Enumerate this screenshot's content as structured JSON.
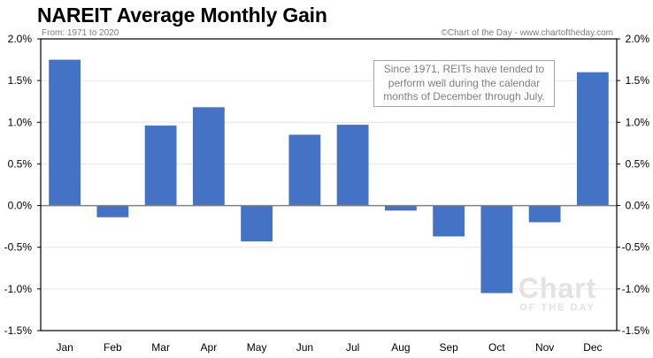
{
  "header": {
    "title": "NAREIT Average Monthly Gain",
    "subtitle": "From: 1971 to 2020",
    "credit": "©Chart of the Day - www.chartoftheday.com"
  },
  "annotation": {
    "lines": [
      "Since 1971, REITs have tended to",
      "perform well during the calendar",
      "months of December through July."
    ]
  },
  "watermark": {
    "big": "Chart",
    "small": "OF THE DAY"
  },
  "colors": {
    "bar": "#4472c4",
    "zero_line": "#808080",
    "gridline": "#e6e6e6",
    "axis": "#000000"
  },
  "chart_data": {
    "type": "bar",
    "title": "NAREIT Average Monthly Gain",
    "subtitle": "From: 1971 to 2020",
    "xlabel": "",
    "ylabel": "",
    "categories": [
      "Jan",
      "Feb",
      "Mar",
      "Apr",
      "May",
      "Jun",
      "Jul",
      "Aug",
      "Sep",
      "Oct",
      "Nov",
      "Dec"
    ],
    "values": [
      1.75,
      -0.14,
      0.96,
      1.18,
      -0.43,
      0.85,
      0.97,
      -0.06,
      -0.37,
      -1.05,
      -0.2,
      1.6
    ],
    "value_unit": "%",
    "ylim": [
      -1.5,
      2.0
    ],
    "yticks": [
      2.0,
      1.5,
      1.0,
      0.5,
      0.0,
      -0.5,
      -1.0,
      -1.5
    ],
    "ytick_labels": [
      "2.0%",
      "1.5%",
      "1.0%",
      "0.5%",
      "0.0%",
      "-0.5%",
      "-1.0%",
      "-1.5%"
    ],
    "y_axis_sides": [
      "left",
      "right"
    ],
    "grid": true,
    "legend": "none"
  }
}
